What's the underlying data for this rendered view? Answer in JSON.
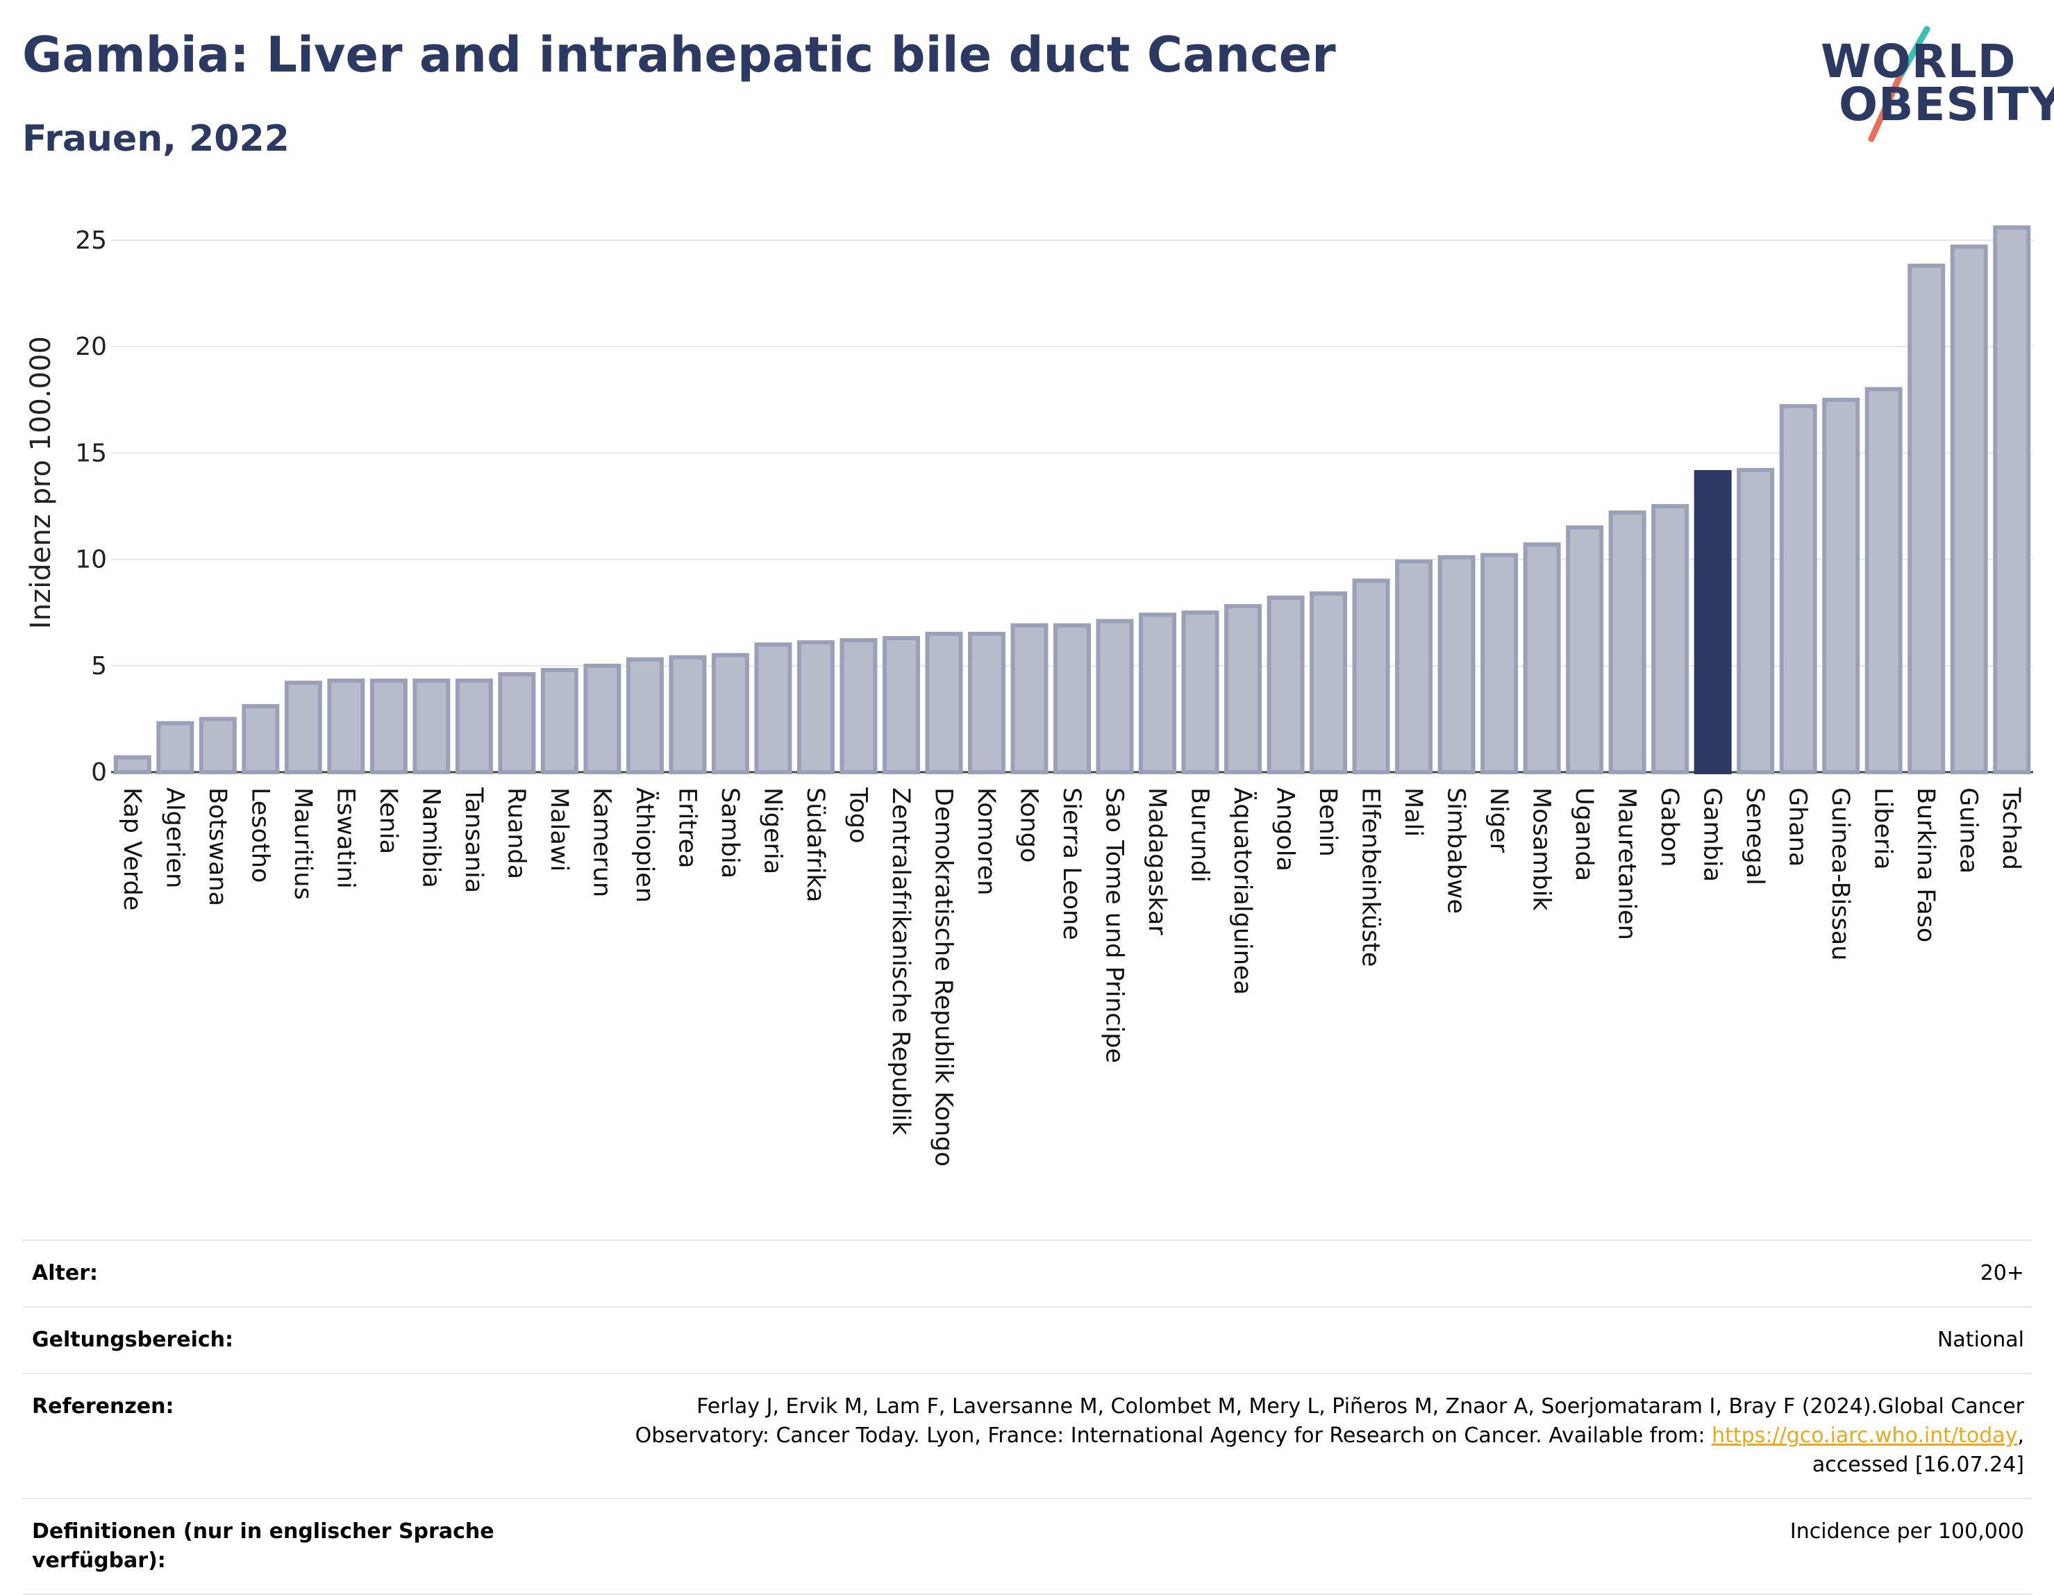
{
  "header": {
    "title": "Gambia: Liver and intrahepatic bile duct Cancer",
    "subtitle": "Frauen, 2022"
  },
  "logo": {
    "line1": "WORLD",
    "line2": "OBESITY"
  },
  "chart_data": {
    "type": "bar",
    "title": "Gambia: Liver and intrahepatic bile duct Cancer",
    "subtitle": "Frauen, 2022",
    "xlabel": "",
    "ylabel": "Inzidenz pro 100.000",
    "ylim": [
      0,
      26.5
    ],
    "yticks": [
      0,
      5,
      10,
      15,
      20,
      25
    ],
    "grid": true,
    "highlight": "Gambia",
    "colors": {
      "bar": "#b7bccb",
      "bar_edge": "#9aa0b8",
      "highlight": "#2c3963"
    },
    "categories": [
      "Kap Verde",
      "Algerien",
      "Botswana",
      "Lesotho",
      "Mauritius",
      "Eswatini",
      "Kenia",
      "Namibia",
      "Tansania",
      "Ruanda",
      "Malawi",
      "Kamerun",
      "Äthiopien",
      "Eritrea",
      "Sambia",
      "Nigeria",
      "Südafrika",
      "Togo",
      "Zentralafrikanische Republik",
      "Demokratische Republik Kongo",
      "Komoren",
      "Kongo",
      "Sierra Leone",
      "Sao Tome und Principe",
      "Madagaskar",
      "Burundi",
      "Äquatorialguinea",
      "Angola",
      "Benin",
      "Elfenbeinküste",
      "Mali",
      "Simbabwe",
      "Niger",
      "Mosambik",
      "Uganda",
      "Mauretanien",
      "Gabon",
      "Gambia",
      "Senegal",
      "Ghana",
      "Guinea-Bissau",
      "Liberia",
      "Burkina Faso",
      "Guinea",
      "Tschad"
    ],
    "values": [
      0.7,
      2.3,
      2.5,
      3.1,
      4.2,
      4.3,
      4.3,
      4.3,
      4.3,
      4.6,
      4.8,
      5.0,
      5.3,
      5.4,
      5.5,
      6.0,
      6.1,
      6.2,
      6.3,
      6.5,
      6.5,
      6.9,
      6.9,
      7.1,
      7.4,
      7.5,
      7.8,
      8.2,
      8.4,
      9.0,
      9.9,
      10.1,
      10.2,
      10.7,
      11.5,
      12.2,
      12.5,
      14.1,
      14.2,
      17.2,
      17.5,
      18.0,
      23.8,
      24.7,
      25.6
    ]
  },
  "info": {
    "rows": [
      {
        "label": "Alter:",
        "value": "20+"
      },
      {
        "label": "Geltungsbereich:",
        "value": "National"
      },
      {
        "label": "Referenzen:",
        "value_before": "Ferlay J, Ervik M, Lam F, Laversanne M, Colombet M, Mery L, Piñeros M, Znaor A, Soerjomataram I, Bray F (2024).Global Cancer Observatory: Cancer Today. Lyon, France: International Agency for Research on Cancer. Available from: ",
        "link": "https://gco.iarc.who.int/today",
        "value_after": ", accessed [16.07.24]"
      },
      {
        "label": "Definitionen (nur in englischer Sprache verfügbar):",
        "value": "Incidence per 100,000"
      }
    ]
  }
}
